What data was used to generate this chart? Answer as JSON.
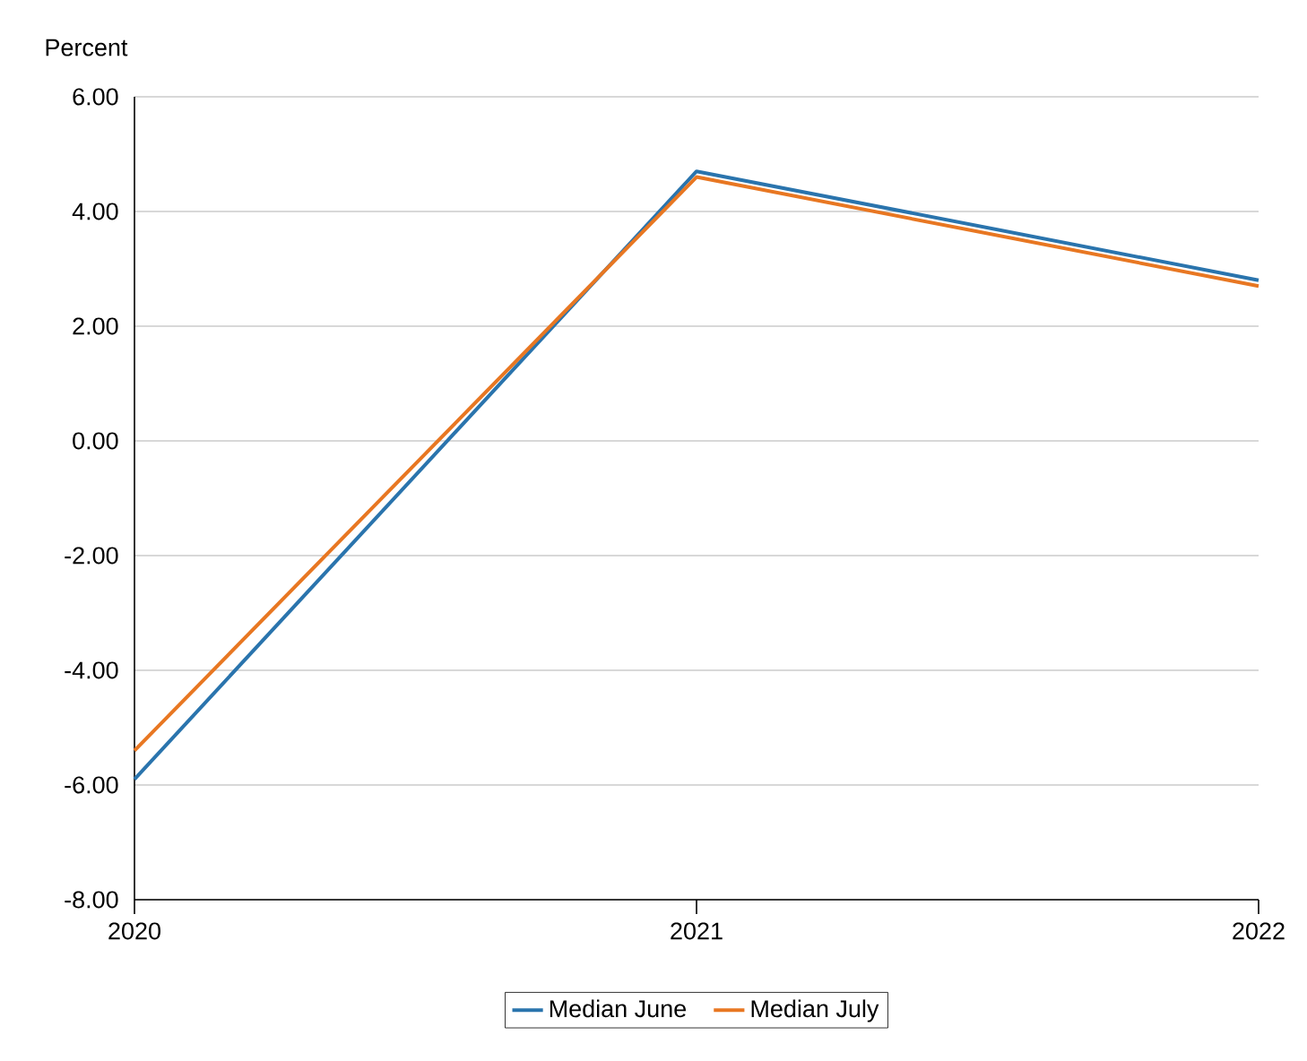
{
  "chart_data": {
    "type": "line",
    "ylabel": "Percent",
    "x": [
      2020,
      2021,
      2022
    ],
    "xlim": [
      2020,
      2022
    ],
    "xticks": [
      2020,
      2021,
      2022
    ],
    "ylim": [
      -8,
      6
    ],
    "yticks": [
      {
        "value": -8,
        "label": "-8.00"
      },
      {
        "value": -6,
        "label": "-6.00"
      },
      {
        "value": -4,
        "label": "-4.00"
      },
      {
        "value": -2,
        "label": "-2.00"
      },
      {
        "value": 0,
        "label": "0.00"
      },
      {
        "value": 2,
        "label": "2.00"
      },
      {
        "value": 4,
        "label": "4.00"
      },
      {
        "value": 6,
        "label": "6.00"
      }
    ],
    "series": [
      {
        "name": "Median June",
        "color": "#2a74ad",
        "values": [
          -5.9,
          4.7,
          2.8
        ]
      },
      {
        "name": "Median July",
        "color": "#e87722",
        "values": [
          -5.4,
          4.6,
          2.7
        ]
      }
    ],
    "grid": "y",
    "legend": "bottom",
    "marker": "none",
    "line_style": "solid"
  }
}
